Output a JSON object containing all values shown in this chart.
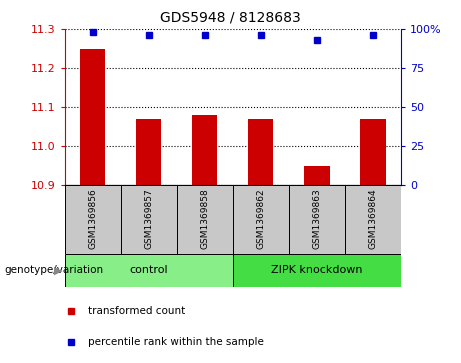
{
  "title": "GDS5948 / 8128683",
  "samples": [
    "GSM1369856",
    "GSM1369857",
    "GSM1369858",
    "GSM1369862",
    "GSM1369863",
    "GSM1369864"
  ],
  "bar_values": [
    11.25,
    11.07,
    11.08,
    11.07,
    10.95,
    11.07
  ],
  "percentile_values": [
    98,
    96,
    96,
    96,
    93,
    96
  ],
  "y_min": 10.9,
  "y_max": 11.3,
  "y_ticks": [
    10.9,
    11.0,
    11.1,
    11.2,
    11.3
  ],
  "right_y_ticks": [
    0,
    25,
    50,
    75,
    100
  ],
  "right_y_tick_labels": [
    "0",
    "25",
    "50",
    "75",
    "100%"
  ],
  "bar_color": "#cc0000",
  "dot_color": "#0000cc",
  "sample_box_color": "#c8c8c8",
  "control_color": "#88ee88",
  "knockdown_color": "#44dd44",
  "control_label": "control",
  "knockdown_label": "ZIPK knockdown",
  "legend_bar_label": "transformed count",
  "legend_dot_label": "percentile rank within the sample",
  "genotype_label": "genotype/variation"
}
